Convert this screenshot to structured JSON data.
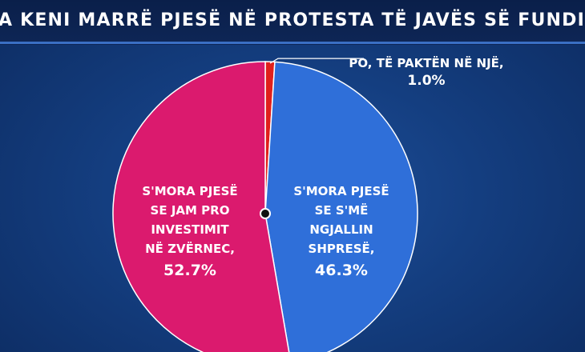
{
  "header": {
    "title": "A KENI MARRË PJESË NË PROTESTA TË JAVËS SË FUNDIT?"
  },
  "chart_data": {
    "type": "pie",
    "title": "A KENI MARRË PJESË NË PROTESTA TË JAVËS SË FUNDIT?",
    "slices": [
      {
        "label": "PO, TË PAKTËN NË NJË,",
        "label_lines": [
          "PO, TË PAKTËN NË NJË,"
        ],
        "value": 1.0,
        "value_text": "1.0%",
        "color": "#e0201c"
      },
      {
        "label": "S'MORA PJESË SE S'MË NGJALLIN SHPRESË,",
        "label_lines": [
          "S'MORA PJESË",
          "SE S'MË",
          "NGJALLIN",
          "SHPRESË,"
        ],
        "value": 46.3,
        "value_text": "46.3%",
        "color": "#2f6fd9"
      },
      {
        "label": "S'MORA PJESË SE JAM PRO INVESTIMIT NË ZVËRNEC,",
        "label_lines": [
          "S'MORA PJESË",
          "SE JAM PRO",
          "INVESTIMIT",
          "NË ZVËRNEC,"
        ],
        "value": 52.7,
        "value_text": "52.7%",
        "color": "#db1a6e"
      }
    ],
    "start_angle_deg": 0,
    "direction": "clockwise",
    "legend": "none",
    "label_style": "inside-slices; smallest slice labeled outside top-right with leader line"
  }
}
